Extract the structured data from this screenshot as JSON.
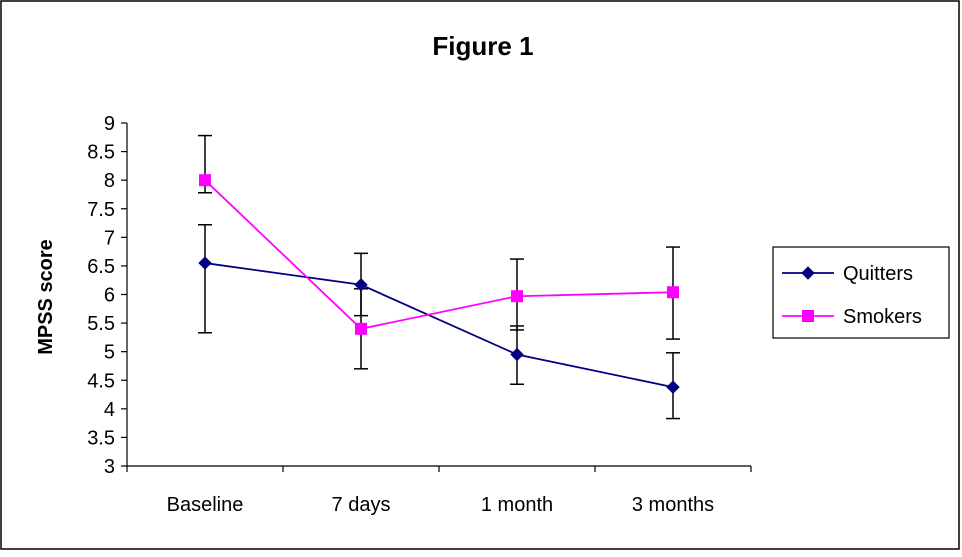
{
  "chart_data": {
    "type": "line",
    "title": "Figure 1",
    "xlabel": "",
    "ylabel": "MPSS score",
    "categories": [
      "Baseline",
      "7 days",
      "1 month",
      "3 months"
    ],
    "ylim": [
      3,
      9
    ],
    "ytick_step": 0.5,
    "yticks": [
      "3",
      "3.5",
      "4",
      "4.5",
      "5",
      "5.5",
      "6",
      "6.5",
      "7",
      "7.5",
      "8",
      "8.5",
      "9"
    ],
    "grid": false,
    "legend_position": "right",
    "series": [
      {
        "name": "Quitters",
        "color": "#000080",
        "marker": "diamond",
        "values": [
          6.55,
          6.17,
          4.95,
          4.38
        ],
        "error_low": [
          5.33,
          5.63,
          4.43,
          3.83
        ],
        "error_high": [
          7.22,
          6.72,
          5.45,
          4.98
        ]
      },
      {
        "name": "Smokers",
        "color": "#ff00ff",
        "marker": "square",
        "values": [
          8.0,
          5.4,
          5.97,
          6.04
        ],
        "error_low": [
          7.78,
          4.7,
          5.38,
          5.22
        ],
        "error_high": [
          8.78,
          6.1,
          6.62,
          6.83
        ]
      }
    ]
  }
}
